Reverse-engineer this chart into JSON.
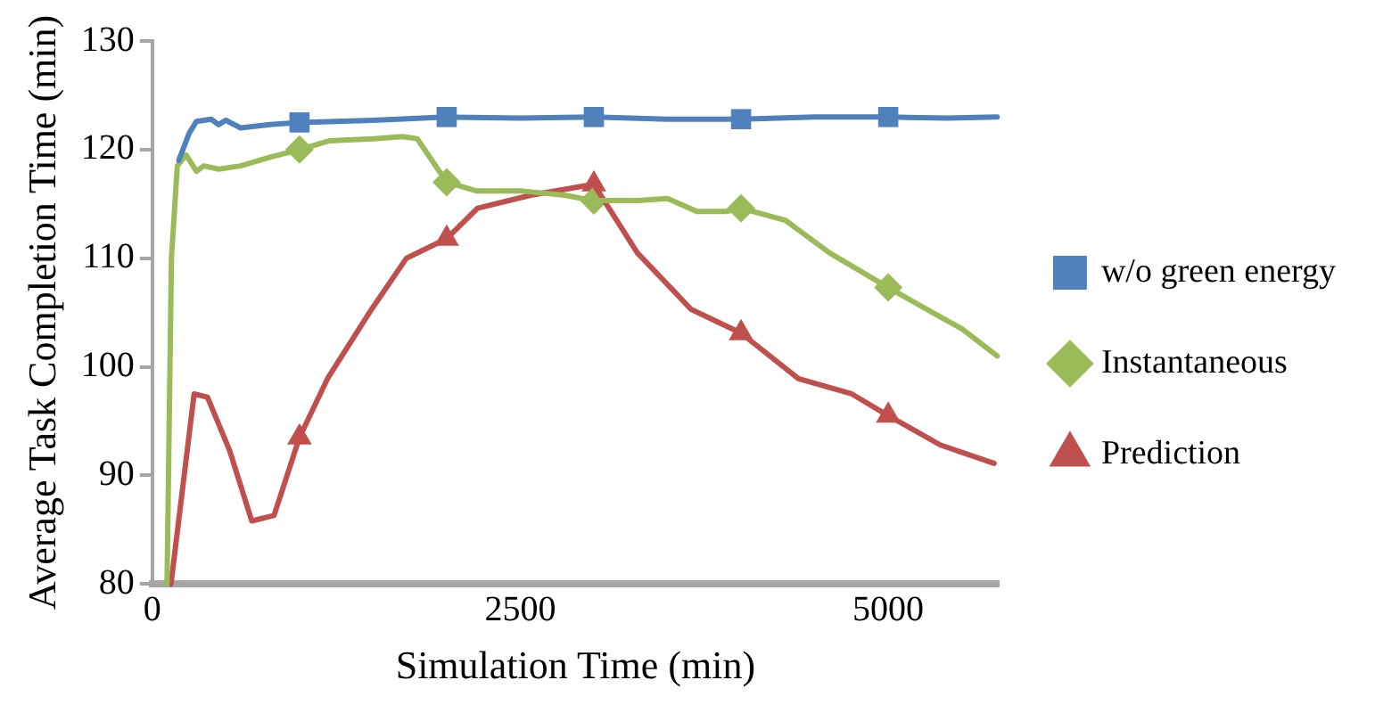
{
  "chart_data": {
    "type": "line",
    "xlabel": "Simulation Time (min)",
    "ylabel": "Average Task Completion Time (min)",
    "xlim": [
      0,
      5750
    ],
    "xticks": [
      0,
      2500,
      5000
    ],
    "ylim": [
      80,
      130
    ],
    "yticks": [
      80,
      90,
      100,
      110,
      120,
      130
    ],
    "grid": false,
    "legend": "right",
    "series": [
      {
        "color": "#4f81bd",
        "marker": "none",
        "x": [
          180,
          250,
          300,
          400,
          450,
          500,
          600,
          800,
          1000,
          1500,
          2000,
          2500,
          3000,
          3500,
          4000,
          4500,
          5000,
          5400,
          5740
        ],
        "values": [
          119,
          121.5,
          122.6,
          122.8,
          122.3,
          122.7,
          122,
          122.3,
          122.5,
          122.7,
          123,
          122.9,
          123,
          122.8,
          122.8,
          123,
          123,
          122.9,
          123
        ]
      },
      {
        "color": "#9bbb59",
        "marker": "none",
        "x": [
          100,
          130,
          170,
          230,
          300,
          350,
          450,
          600,
          800,
          1000,
          1200,
          1500,
          1700,
          1800,
          1900,
          2000,
          2200,
          2500,
          2800,
          3000,
          3300,
          3500,
          3700,
          3900,
          4000,
          4300,
          4600,
          5000,
          5300,
          5500,
          5740
        ],
        "values": [
          80,
          110,
          118.5,
          119.5,
          118,
          118.5,
          118.2,
          118.5,
          119.3,
          120,
          120.8,
          121,
          121.2,
          121,
          119,
          117,
          116.2,
          116.2,
          115.8,
          115.3,
          115.3,
          115.5,
          114.3,
          114.3,
          114.6,
          113.5,
          110.5,
          107.3,
          105,
          103.5,
          101
        ]
      },
      {
        "color": "#c0504d",
        "marker": "none",
        "x": [
          127,
          284,
          375,
          525,
          676,
          827,
          1000,
          1190,
          1490,
          1727,
          2000,
          2210,
          2572,
          3000,
          3295,
          3660,
          4000,
          4390,
          4752,
          5000,
          5354,
          5719
        ],
        "values": [
          80,
          97.5,
          97.2,
          92.3,
          85.8,
          86.3,
          93.5,
          98.9,
          105.3,
          110,
          111.8,
          114.6,
          115.8,
          116.8,
          110.5,
          105.3,
          103.1,
          98.9,
          97.5,
          95.5,
          92.8,
          91.1
        ]
      },
      {
        "name": "w/o green energy",
        "type": "scatter",
        "color": "#4f81bd",
        "marker": "square",
        "x": [
          1000,
          2000,
          3000,
          4000,
          5000
        ],
        "values": [
          122.5,
          123,
          123,
          122.8,
          123
        ]
      },
      {
        "name": "Instantaneous",
        "type": "scatter",
        "color": "#9bbb59",
        "marker": "diamond",
        "x": [
          1000,
          2000,
          3000,
          4000,
          5000
        ],
        "values": [
          120,
          117,
          115.3,
          114.6,
          107.3
        ]
      },
      {
        "name": "Prediction",
        "type": "scatter",
        "color": "#c0504d",
        "marker": "triangle",
        "x": [
          1000,
          2000,
          3000,
          4000,
          5000
        ],
        "values": [
          93.5,
          111.8,
          116.8,
          103.1,
          95.5
        ]
      }
    ]
  }
}
